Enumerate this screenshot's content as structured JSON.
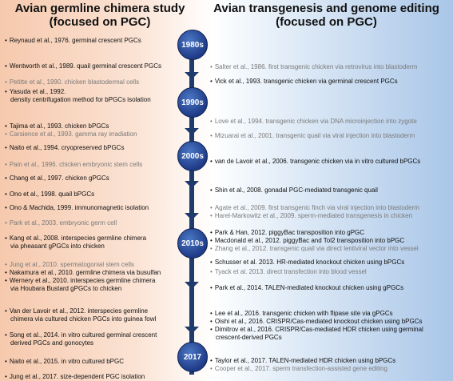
{
  "titles": {
    "left": [
      "Avian germline chimera study",
      "(focused on PGC)"
    ],
    "right": [
      "Avian transgenesis and genome editing",
      "(focused on PGC)"
    ]
  },
  "nodes": [
    "1980s",
    "1990s",
    "2000s",
    "2010s",
    "2017"
  ],
  "left_entries": [
    {
      "text": "Reynaud et al., 1976. germinal crescent PGCs",
      "gray": false
    },
    {
      "text": "Wentworth et al., 1989. quail germinal crescent PGCs",
      "gray": false
    },
    {
      "text": "Petitte et al., 1990. chicken blastodermal cells",
      "gray": true
    },
    {
      "text": "Yasuda et al., 1992.",
      "gray": false
    },
    {
      "text": "density centrifugation method for bPGCs isolation",
      "gray": false,
      "nobullet": true
    },
    {
      "text": "Tajima et al., 1993. chicken bPGCs",
      "gray": false
    },
    {
      "text": "Carsience et al., 1993. gamma ray irradiation",
      "gray": true
    },
    {
      "text": "Naito et al., 1994. cryopreserved bPGCs",
      "gray": false
    },
    {
      "text": "Pain et al., 1996. chicken embryonic stem cells",
      "gray": true
    },
    {
      "text": "Chang et al., 1997. chicken gPGCs",
      "gray": false
    },
    {
      "text": "Ono et al., 1998. quail bPGCs",
      "gray": false
    },
    {
      "text": "Ono & Machida, 1999. immunomagnetic isolation",
      "gray": false
    },
    {
      "text": "Park et al., 2003. embryonic germ cell",
      "gray": true
    },
    {
      "text": "Kang et al., 2008. interspecies germline chimera",
      "gray": false
    },
    {
      "text": "via pheasant gPGCs into chicken",
      "gray": false,
      "nobullet": true
    },
    {
      "text": "Jung et al., 2010. spermatogonial stem cells",
      "gray": true
    },
    {
      "text": "Nakamura et al., 2010. germline chimera via busulfan",
      "gray": false
    },
    {
      "text": "Wernery et al., 2010. interspecies germline chimera",
      "gray": false
    },
    {
      "text": "via Houbara Bustard gPGCs to chicken",
      "gray": false,
      "nobullet": true
    },
    {
      "text": "Van der Lavoir et al., 2012. interspecies germline",
      "gray": false
    },
    {
      "text": "chimera via cultured chicken PGCs into guinea fowl",
      "gray": false,
      "nobullet": true
    },
    {
      "text": "Song et al., 2014. in vitro cultured germinal crescent",
      "gray": false
    },
    {
      "text": "derived PGCs and gonocytes",
      "gray": false,
      "nobullet": true
    },
    {
      "text": "Naito et al., 2015. in vitro cultured bPGC",
      "gray": false
    },
    {
      "text": "Jung et al., 2017. size-dependent PGC isolation",
      "gray": false
    }
  ],
  "right_entries": [
    {
      "text": "Salter et al., 1986. first transgenic chicken via retrovirus into blastoderm",
      "gray": true
    },
    {
      "text": "Vick et al., 1993. transgenic chicken via germinal crescent PGCs",
      "gray": false
    },
    {
      "text": "Love et al., 1994. transgenic chicken via DNA microinjection into zygote",
      "gray": true
    },
    {
      "text": "Mizuarai et al., 2001. transgenic quail via viral injection into blastoderm",
      "gray": true
    },
    {
      "text": "van de Lavoir et al., 2006. transgenic chicken via in vitro cultured bPGCs",
      "gray": false
    },
    {
      "text": "Shin et al., 2008. gonadal PGC-mediated transgenic quail",
      "gray": false
    },
    {
      "text": "Agate et al., 2009. first transgenic finch via viral injection into blastoderm",
      "gray": true
    },
    {
      "text": "Harel-Markowitz et al., 2009. sperm-mediated transgenesis in chicken",
      "gray": true
    },
    {
      "text": "Park & Han, 2012. piggyBac transposition into gPGC",
      "gray": false
    },
    {
      "text": "Macdonald et al., 2012. piggyBac and Tol2 transposition into bPGC",
      "gray": false
    },
    {
      "text": "Zhang et al., 2012. transgenic quail via direct lentiviral vector into vessel",
      "gray": true
    },
    {
      "text": "Schusser et al. 2013. HR-mediated knockout chicken using bPGCs",
      "gray": false
    },
    {
      "text": "Tyack et al. 2013. direct transfection into blood vessel",
      "gray": true
    },
    {
      "text": "Park et al., 2014. TALEN-mediated knockout chicken using gPGCs",
      "gray": false
    },
    {
      "text": "Lee et al., 2016. transgenic chicken with flipase site via gPGCs",
      "gray": false
    },
    {
      "text": "Oishi et al., 2016. CRISPR/Cas-mediated knockout chicken using bPGCs",
      "gray": false
    },
    {
      "text": "Dimitrov et al., 2016. CRISPR/Cas-mediated HDR chicken using germinal",
      "gray": false
    },
    {
      "text": "crescent-derived PGCs",
      "gray": false,
      "nobullet": true
    },
    {
      "text": "Taylor et al., 2017. TALEN-mediated HDR chicken using bPGCs",
      "gray": false
    },
    {
      "text": "Cooper et al., 2017. sperm transfection-assisted gene editing",
      "gray": true
    }
  ],
  "colors": {
    "node": "#1f3b88",
    "spine": "#1f3b6e",
    "gray_text": "#7a7a7a",
    "left_bg": "#f6c9ad",
    "right_bg": "#a9c6e8"
  }
}
